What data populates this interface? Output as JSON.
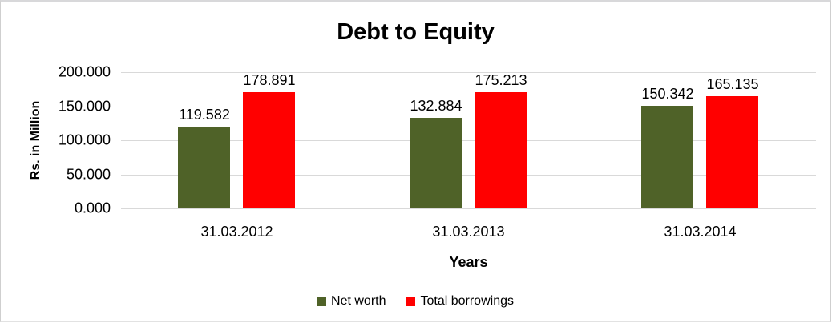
{
  "chart_data": {
    "type": "bar",
    "title": "Debt to Equity",
    "xlabel": "Years",
    "ylabel": "Rs. in Million",
    "categories": [
      "31.03.2012",
      "31.03.2013",
      "31.03.2014"
    ],
    "series": [
      {
        "name": "Net worth",
        "color": "#4F6228",
        "values": [
          119.582,
          132.884,
          150.342
        ],
        "labels": [
          "119.582",
          "132.884",
          "150.342"
        ]
      },
      {
        "name": "Total borrowings",
        "color": "#FF0000",
        "values": [
          178.891,
          175.213,
          165.135
        ],
        "labels": [
          "178.891",
          "175.213",
          "165.135"
        ]
      }
    ],
    "ylim": [
      0,
      200
    ],
    "y_tick_step": 50,
    "y_tick_labels": [
      "200.000",
      "150.000",
      "100.000",
      "50.000",
      "0.000"
    ],
    "grid": true,
    "gridline_color": "#D9D9D9",
    "legend_position": "bottom-center"
  }
}
